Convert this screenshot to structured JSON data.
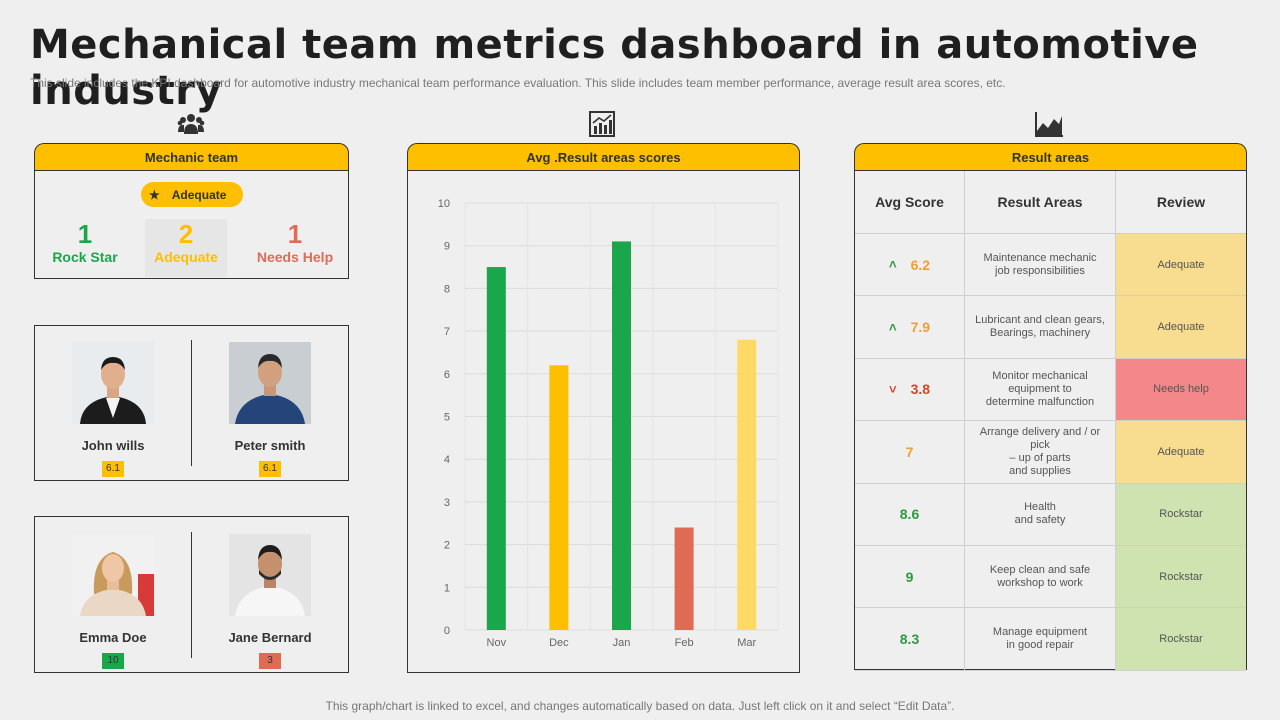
{
  "page": {
    "title": "Mechanical team metrics dashboard in automotive industry",
    "subtitle": "This slide includes the KPI dashboard for automotive industry mechanical team performance evaluation. This slide includes team member performance, average result area scores, etc.",
    "footer": "This graph/chart is linked to excel,  and changes automatically based on data. Just left click on it and select “Edit Data”."
  },
  "icons": {
    "team": "team-icon",
    "chart": "bar-chart-icon",
    "area": "area-chart-icon"
  },
  "mechanic_team": {
    "header": "Mechanic team",
    "pill_label": "Adequate",
    "stats": [
      {
        "count": "1",
        "label": "Rock Star",
        "color": "#1aa64a"
      },
      {
        "count": "2",
        "label": "Adequate",
        "color": "#fdbf00"
      },
      {
        "count": "1",
        "label": "Needs Help",
        "color": "#e06b54"
      }
    ]
  },
  "members": [
    {
      "name": "John wills",
      "score": "6.1",
      "badge_color": "#fdbf00"
    },
    {
      "name": "Peter smith",
      "score": "6.1",
      "badge_color": "#fdbf00"
    },
    {
      "name": "Emma Doe",
      "score": "10",
      "badge_color": "#1aa64a"
    },
    {
      "name": "Jane Bernard",
      "score": "3",
      "badge_color": "#e06b54"
    }
  ],
  "chart_panel": {
    "header": "Avg .Result areas scores"
  },
  "chart_data": {
    "type": "bar",
    "categories": [
      "Nov",
      "Dec",
      "Jan",
      "Feb",
      "Mar"
    ],
    "values": [
      8.5,
      6.2,
      9.1,
      2.4,
      6.8
    ],
    "colors": [
      "#1aa64a",
      "#fdbf00",
      "#1aa64a",
      "#e06b54",
      "#ffd966"
    ],
    "ylim": [
      0,
      10
    ],
    "yticks": [
      0,
      1,
      2,
      3,
      4,
      5,
      6,
      7,
      8,
      9,
      10
    ],
    "grid": true,
    "title": "",
    "xlabel": "",
    "ylabel": ""
  },
  "result_areas": {
    "header": "Result areas",
    "columns": [
      "Avg  Score",
      "Result Areas",
      "Review"
    ],
    "rows": [
      {
        "score": "6.2",
        "trend": "up",
        "area": "Maintenance mechanic\njob responsibilities",
        "review": "Adequate",
        "score_color": "#f0a030",
        "review_bg": "#f8dc8f"
      },
      {
        "score": "7.9",
        "trend": "up",
        "area": "Lubricant and clean gears,\nBearings, machinery",
        "review": "Adequate",
        "score_color": "#f0a030",
        "review_bg": "#f8dc8f"
      },
      {
        "score": "3.8",
        "trend": "down",
        "area": "Monitor mechanical\nequipment to\ndetermine malfunction",
        "review": "Needs help",
        "score_color": "#d9432c",
        "review_bg": "#f4878a"
      },
      {
        "score": "7",
        "trend": "",
        "area": "Arrange delivery and / or pick\n– up of parts\nand supplies",
        "review": "Adequate",
        "score_color": "#f0a030",
        "review_bg": "#f8dc8f"
      },
      {
        "score": "8.6",
        "trend": "",
        "area": "Health\nand safety",
        "review": "Rockstar",
        "score_color": "#2e9a3e",
        "review_bg": "#cfe3b0"
      },
      {
        "score": "9",
        "trend": "",
        "area": "Keep clean and safe\nworkshop to work",
        "review": "Rockstar",
        "score_color": "#2e9a3e",
        "review_bg": "#cfe3b0"
      },
      {
        "score": "8.3",
        "trend": "",
        "area": "Manage equipment\nin good repair",
        "review": "Rockstar",
        "score_color": "#2e9a3e",
        "review_bg": "#cfe3b0"
      }
    ]
  }
}
